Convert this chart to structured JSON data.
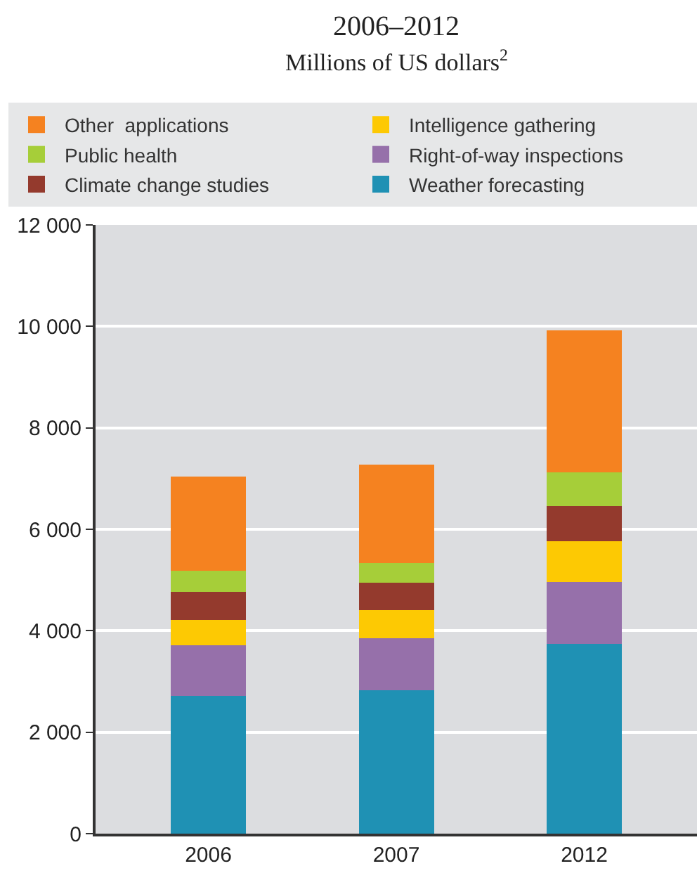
{
  "chart_data": {
    "type": "bar",
    "stacked": true,
    "title": "2006–2012",
    "subtitle": "Millions of US dollars$^{2}$",
    "categories": [
      "2006",
      "2007",
      "2012"
    ],
    "series": [
      {
        "name": "Weather forecasting",
        "color": "#1f91b4",
        "values": [
          2720,
          2830,
          3740
        ]
      },
      {
        "name": "Right-of-way inspections",
        "color": "#9670aa",
        "values": [
          990,
          1020,
          1220
        ]
      },
      {
        "name": "Intelligence gathering",
        "color": "#fdc903",
        "values": [
          500,
          550,
          800
        ]
      },
      {
        "name": "Climate change studies",
        "color": "#943a2d",
        "values": [
          550,
          550,
          700
        ]
      },
      {
        "name": "Public health",
        "color": "#a6ce39",
        "values": [
          420,
          390,
          660
        ]
      },
      {
        "name": "Other  applications",
        "color": "#f58220",
        "values": [
          1860,
          1940,
          2800
        ]
      }
    ],
    "ylim": [
      0,
      12000
    ],
    "yticks": [
      0,
      {
        "value": 2000,
        "label": "2 000"
      },
      {
        "value": 4000,
        "label": "4 000"
      },
      {
        "value": 6000,
        "label": "6 000"
      },
      {
        "value": 8000,
        "label": "8 000"
      },
      {
        "value": 10000,
        "label": "10 000"
      },
      {
        "value": 12000,
        "label": "12 000"
      }
    ],
    "grid": "y",
    "legend": "top"
  }
}
